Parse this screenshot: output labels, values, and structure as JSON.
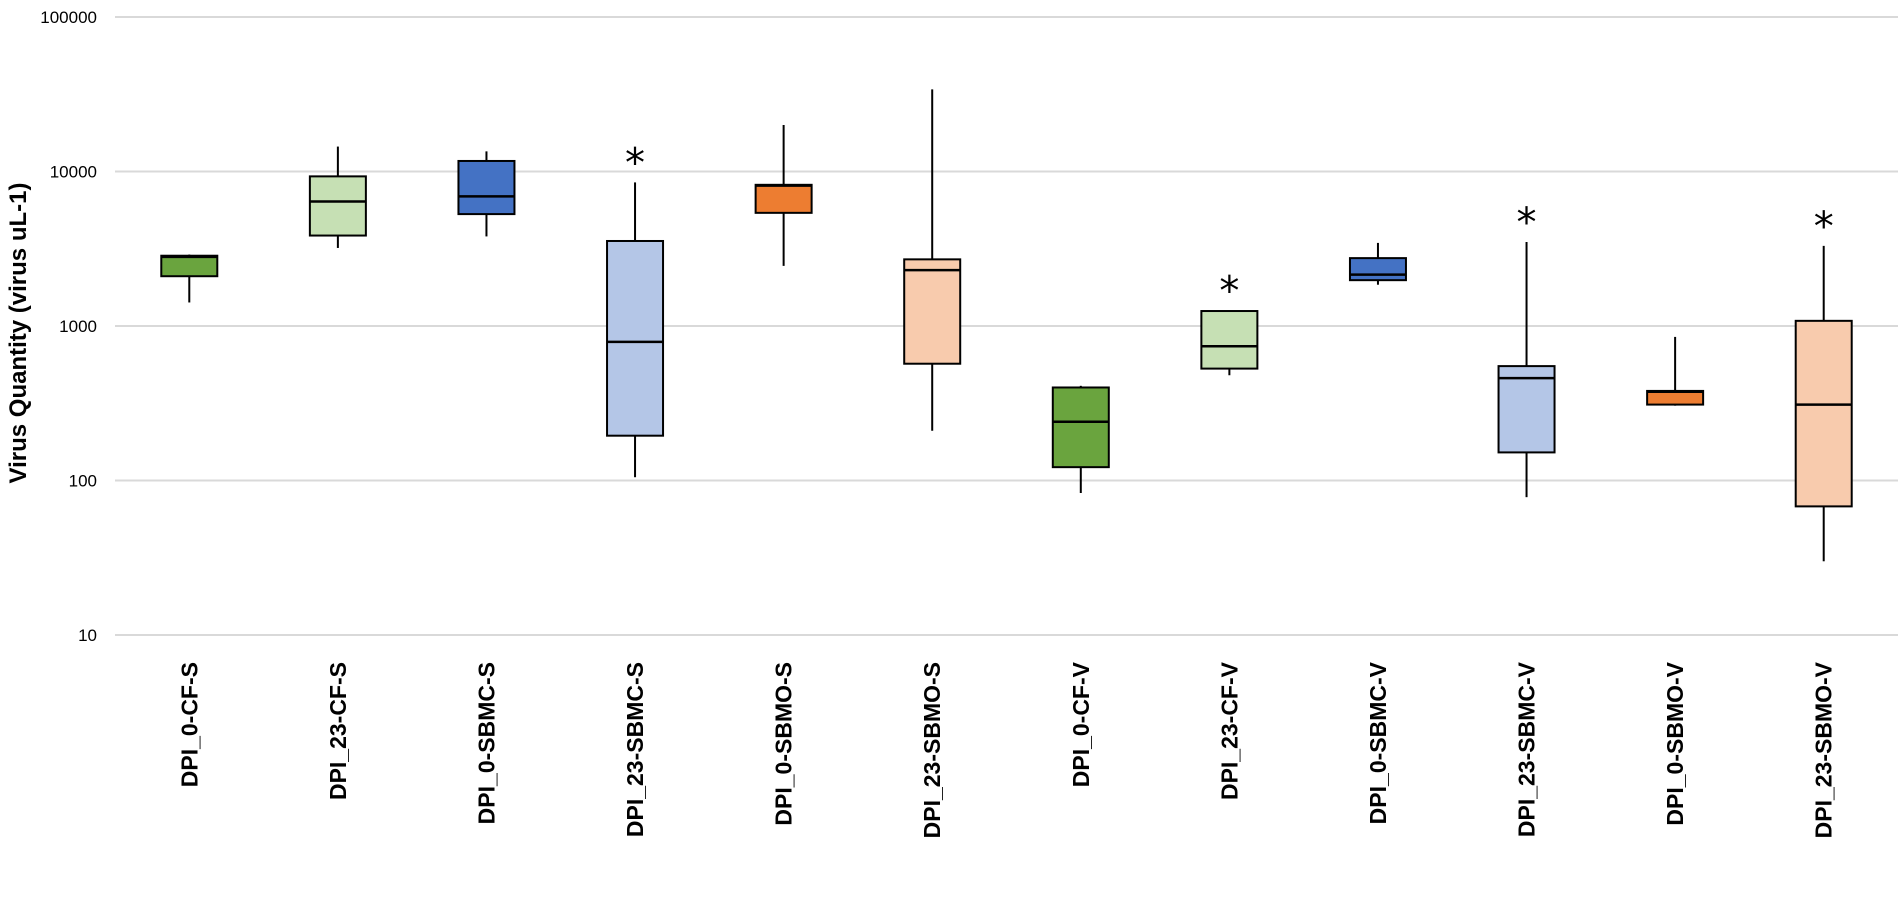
{
  "chart_data": {
    "type": "boxplot",
    "title": "",
    "xlabel": "",
    "ylabel": "Virus Quantity (virus uL-1)",
    "yscale": "log",
    "ylim": [
      10,
      100000
    ],
    "grid": true,
    "yticks": [
      {
        "value": 10,
        "label": "10"
      },
      {
        "value": 100,
        "label": "100"
      },
      {
        "value": 1000,
        "label": "1000"
      },
      {
        "value": 10000,
        "label": "10000"
      },
      {
        "value": 100000,
        "label": "100000"
      }
    ],
    "annotation_symbol": "*",
    "colors": {
      "CF_dark": "#6aa43e",
      "CF_light": "#c6e0b4",
      "SBMC_dark": "#4472c4",
      "SBMC_light": "#b4c6e7",
      "SBMO_dark": "#ed7d31",
      "SBMO_light": "#f8cbad",
      "grid": "#d9d9d9",
      "outline": "#000000"
    },
    "series": [
      {
        "category": "DPI_0-CF-S",
        "color": "#6aa43e",
        "min": 1420,
        "q1": 2100,
        "median": 2800,
        "q3": 2850,
        "max": 2900,
        "significant": false
      },
      {
        "category": "DPI_23-CF-S",
        "color": "#c6e0b4",
        "min": 3200,
        "q1": 3850,
        "median": 6400,
        "q3": 9300,
        "max": 14500,
        "significant": false
      },
      {
        "category": "DPI_0-SBMC-S",
        "color": "#4472c4",
        "min": 3800,
        "q1": 5300,
        "median": 6900,
        "q3": 11700,
        "max": 13500,
        "significant": false
      },
      {
        "category": "DPI_23-SBMC-S",
        "color": "#b4c6e7",
        "min": 105,
        "q1": 195,
        "median": 790,
        "q3": 3550,
        "max": 8500,
        "significant": true
      },
      {
        "category": "DPI_0-SBMO-S",
        "color": "#ed7d31",
        "min": 2450,
        "q1": 5400,
        "median": 8100,
        "q3": 8200,
        "max": 20000,
        "significant": false
      },
      {
        "category": "DPI_23-SBMO-S",
        "color": "#f8cbad",
        "min": 210,
        "q1": 570,
        "median": 2300,
        "q3": 2700,
        "max": 34000,
        "significant": false
      },
      {
        "category": "DPI_0-CF-V",
        "color": "#6aa43e",
        "min": 83,
        "q1": 122,
        "median": 240,
        "q3": 400,
        "max": 410,
        "significant": false
      },
      {
        "category": "DPI_23-CF-V",
        "color": "#c6e0b4",
        "min": 480,
        "q1": 530,
        "median": 740,
        "q3": 1250,
        "max": 1260,
        "significant": true
      },
      {
        "category": "DPI_0-SBMC-V",
        "color": "#4472c4",
        "min": 1850,
        "q1": 1980,
        "median": 2150,
        "q3": 2750,
        "max": 3450,
        "significant": false
      },
      {
        "category": "DPI_23-SBMC-V",
        "color": "#b4c6e7",
        "min": 78,
        "q1": 152,
        "median": 460,
        "q3": 550,
        "max": 3500,
        "significant": true
      },
      {
        "category": "DPI_0-SBMO-V",
        "color": "#ed7d31",
        "min": 305,
        "q1": 310,
        "median": 375,
        "q3": 380,
        "max": 850,
        "significant": false
      },
      {
        "category": "DPI_23-SBMO-V",
        "color": "#f8cbad",
        "min": 30,
        "q1": 68,
        "median": 310,
        "q3": 1080,
        "max": 3300,
        "significant": true
      }
    ]
  }
}
